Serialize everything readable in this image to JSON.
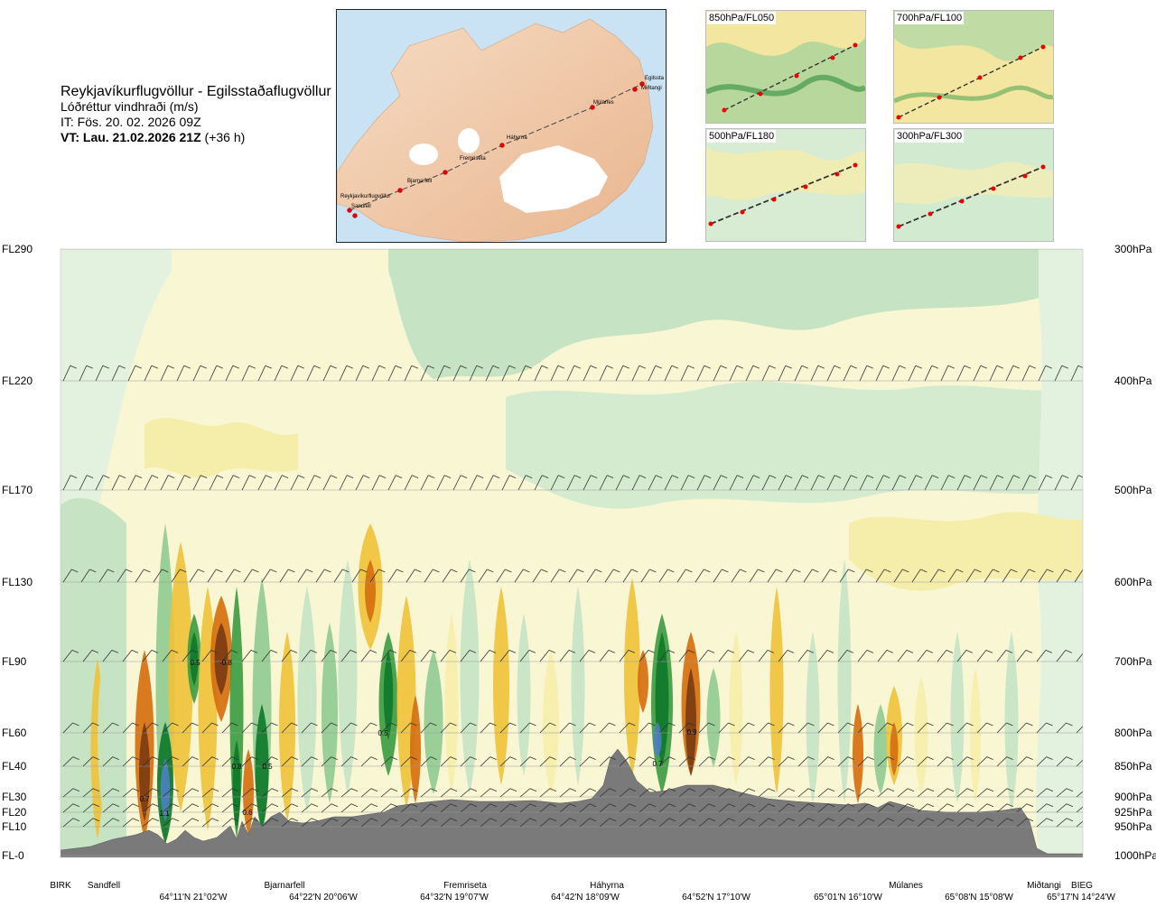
{
  "header": {
    "route": "Reykjavíkurflugvöllur - Egilsstaðaflugvöllur",
    "variable": "Lóðréttur vindhraði (m/s)",
    "issue_time": "IT: Fös. 20. 02. 2026 09Z",
    "valid_prefix": "VT: Lau. 21.02.2026 21Z",
    "valid_suffix": " (+36 h)"
  },
  "overview_map": {
    "labels": [
      "Reykjavíkurflugvöllur",
      "Sandfell",
      "Bjarnarfell",
      "Fremriseta",
      "Háhyrna",
      "Múlanes",
      "Miðtangi",
      "Egilssta"
    ]
  },
  "level_panels": [
    {
      "label": "850hPa/FL050"
    },
    {
      "label": "700hPa/FL100"
    },
    {
      "label": "500hPa/FL180"
    },
    {
      "label": "300hPa/FL300"
    }
  ],
  "colors": {
    "strong_up": "#7b3b12",
    "up2": "#d66f0f",
    "up1": "#efc23a",
    "up0": "#f5eeaa",
    "weak_up": "#faf7d6",
    "weak_down": "#e3f2de",
    "down0": "#c6e4c4",
    "down1": "#92cb92",
    "down2": "#3e9c43",
    "down3": "#0f7a2a",
    "strong_down": "#4c7fbf",
    "terrain": "#7a7a7a"
  },
  "chart_data": {
    "type": "heatmap",
    "title": "Lóðréttur vindhraði (m/s)",
    "y_levels": [
      {
        "fl": "FL290",
        "hpa": "300hPa"
      },
      {
        "fl": "FL220",
        "hpa": "400hPa"
      },
      {
        "fl": "FL170",
        "hpa": "500hPa"
      },
      {
        "fl": "FL130",
        "hpa": "600hPa"
      },
      {
        "fl": "FL90",
        "hpa": "700hPa"
      },
      {
        "fl": "FL60",
        "hpa": "800hPa"
      },
      {
        "fl": "FL40",
        "hpa": "850hPa"
      },
      {
        "fl": "FL30",
        "hpa": "900hPa"
      },
      {
        "fl": "FL20",
        "hpa": "925hPa"
      },
      {
        "fl": "FL10",
        "hpa": "950hPa"
      },
      {
        "fl": "FL-0",
        "hpa": "1000hPa"
      }
    ],
    "x_stations": [
      "BIRK",
      "Sandfell",
      "Bjarnarfell",
      "Fremriseta",
      "Háhyrna",
      "Múlanes",
      "Miðtangi",
      "BIEG"
    ],
    "x_coords": [
      "64°11'N 21°02'W",
      "64°22'N 20°06'W",
      "64°32'N 19°07'W",
      "64°42'N 18°09'W",
      "64°52'N 17°10'W",
      "65°01'N 16°10'W",
      "65°08'N 15°08'W",
      "65°17'N 14°24'W"
    ],
    "annotations": [
      "0.7",
      "1.1",
      "0.5",
      "-0.8",
      "0.8",
      "0.6",
      "0.5",
      "0.5",
      "0.9",
      "0.7"
    ],
    "grid": true
  }
}
